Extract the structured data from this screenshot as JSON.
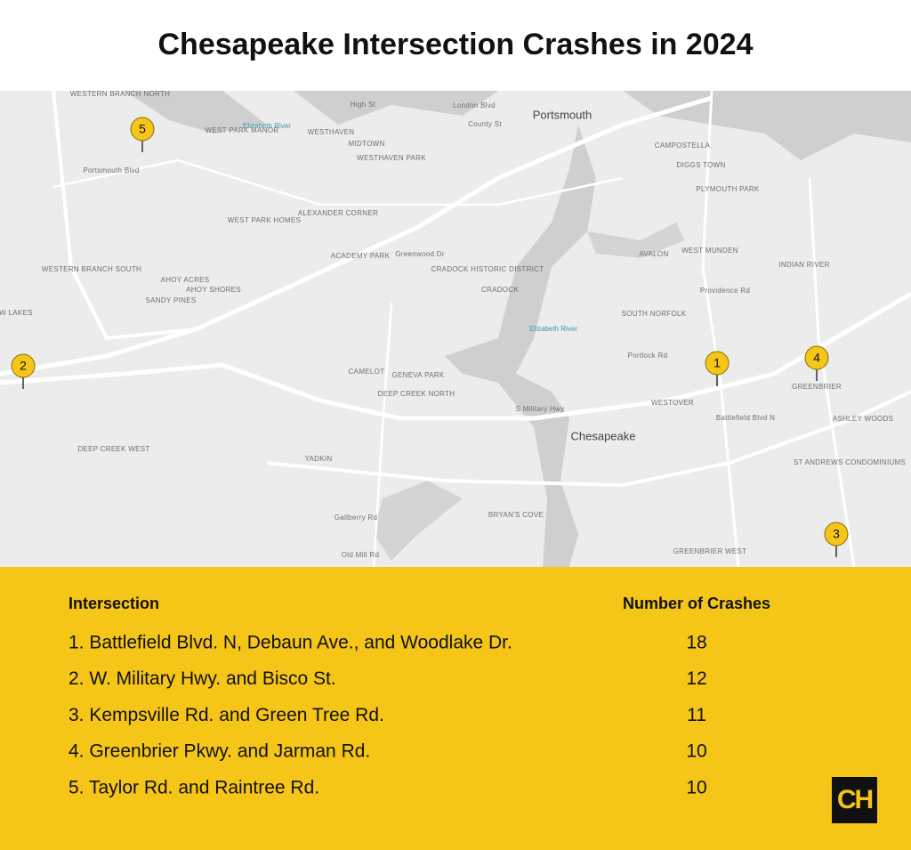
{
  "title": "Chesapeake Intersection Crashes in 2024",
  "map": {
    "labels": [
      "WESTERN BRANCH NORTH",
      "WEST PARK MANOR",
      "WESTHAVEN",
      "MIDTOWN",
      "WESTHAVEN PARK",
      "Portsmouth",
      "County St",
      "London Blvd",
      "High St",
      "CAMPOSTELLA",
      "DIGGS TOWN",
      "PLYMOUTH PARK",
      "ALEXANDER CORNER",
      "WEST PARK HOMES",
      "ACADEMY PARK",
      "Greenwood Dr",
      "CRADOCK HISTORIC DISTRICT",
      "CRADOCK",
      "AVALON",
      "WEST MUNDEN",
      "INDIAN RIVER",
      "WESTERN BRANCH SOUTH",
      "AHOY ACRES",
      "AHOY SHORES",
      "SANDY PINES",
      "W LAKES",
      "SOUTH NORFOLK",
      "Portlock Rd",
      "CAMELOT",
      "GENEVA PARK",
      "DEEP CREEK NORTH",
      "GREENBRIER",
      "ASHLEY WOODS",
      "WESTOVER",
      "S Military Hwy",
      "Chesapeake",
      "DEEP CREEK WEST",
      "YADKIN",
      "ST ANDREWS CONDOMINIUMS",
      "BRYAN'S COVE",
      "GREENBRIER WEST",
      "Gallberry Rd",
      "Old Mill Rd",
      "Elizabeth River",
      "Elizabeth River",
      "Portsmouth Blvd",
      "Battlefield Blvd N",
      "Providence Rd"
    ],
    "markers": [
      {
        "label": "1"
      },
      {
        "label": "2"
      },
      {
        "label": "3"
      },
      {
        "label": "4"
      },
      {
        "label": "5"
      }
    ]
  },
  "table": {
    "header": [
      "Intersection",
      "Number of Crashes"
    ],
    "rows": [
      [
        "1. Battlefield Blvd. N, Debaun Ave., and Woodlake Dr.",
        "18"
      ],
      [
        "2. W. Military Hwy. and Bisco St.",
        "12"
      ],
      [
        "3. Kempsville Rd. and Green Tree Rd.",
        "11"
      ],
      [
        "4. Greenbrier Pkwy. and Jarman Rd.",
        "10"
      ],
      [
        "5. Taylor Rd. and Raintree Rd.",
        "10"
      ]
    ]
  },
  "logo": "CH"
}
